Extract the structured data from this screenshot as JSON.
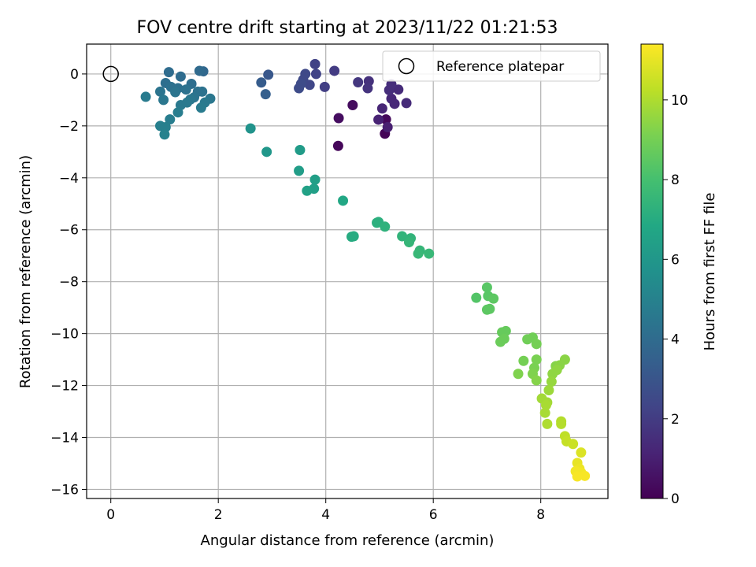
{
  "chart_data": {
    "type": "scatter",
    "title": "FOV centre drift starting at 2023/11/22 01:21:53",
    "xlabel": "Angular distance from reference (arcmin)",
    "ylabel": "Rotation from reference (arcmin)",
    "xlim": [
      -0.45,
      9.25
    ],
    "ylim": [
      -16.35,
      1.15
    ],
    "xticks": [
      0,
      2,
      4,
      6,
      8
    ],
    "xtick_labels": [
      "0",
      "2",
      "4",
      "6",
      "8"
    ],
    "yticks": [
      0,
      -2,
      -4,
      -6,
      -8,
      -10,
      -12,
      -14,
      -16
    ],
    "ytick_labels": [
      "0",
      "−2",
      "−4",
      "−6",
      "−8",
      "−10",
      "−12",
      "−14",
      "−16"
    ],
    "grid": true,
    "colormap": "viridis",
    "colorbar": {
      "label": "Hours from first FF file",
      "range": [
        0,
        11.4
      ],
      "ticks": [
        0,
        2,
        4,
        6,
        8,
        10
      ],
      "tick_labels": [
        "0",
        "2",
        "4",
        "6",
        "8",
        "10"
      ]
    },
    "legend": {
      "position": "top-right",
      "entries": [
        {
          "label": "Reference platepar",
          "marker": "open-circle"
        }
      ]
    },
    "reference_point": {
      "x": 0,
      "y": 0
    },
    "points": [
      [
        5.1,
        -2.3,
        0.1
      ],
      [
        4.23,
        -2.77,
        0.2
      ],
      [
        5.12,
        -1.75,
        0.25
      ],
      [
        4.5,
        -1.2,
        0.35
      ],
      [
        4.24,
        -1.7,
        0.4
      ],
      [
        5.15,
        -2.05,
        1.0
      ],
      [
        4.98,
        -1.76,
        1.1
      ],
      [
        5.05,
        -1.33,
        1.2
      ],
      [
        5.22,
        -0.95,
        1.3
      ],
      [
        5.28,
        -1.15,
        1.3
      ],
      [
        5.5,
        -1.12,
        1.4
      ],
      [
        5.35,
        -0.6,
        1.4
      ],
      [
        5.18,
        -0.62,
        1.5
      ],
      [
        5.22,
        -0.4,
        1.5
      ],
      [
        4.8,
        -0.28,
        1.6
      ],
      [
        4.78,
        -0.55,
        1.7
      ],
      [
        4.6,
        -0.32,
        1.8
      ],
      [
        4.16,
        0.12,
        2.0
      ],
      [
        3.98,
        -0.5,
        2.1
      ],
      [
        3.8,
        0.38,
        2.2
      ],
      [
        3.82,
        0.0,
        2.3
      ],
      [
        3.7,
        -0.42,
        2.4
      ],
      [
        3.62,
        0.0,
        2.5
      ],
      [
        3.58,
        -0.22,
        2.5
      ],
      [
        3.54,
        -0.38,
        2.6
      ],
      [
        3.5,
        -0.55,
        2.6
      ],
      [
        2.93,
        -0.03,
        3.1
      ],
      [
        2.8,
        -0.33,
        3.3
      ],
      [
        2.88,
        -0.78,
        3.4
      ],
      [
        1.72,
        0.1,
        3.8
      ],
      [
        1.65,
        0.12,
        3.9
      ],
      [
        1.08,
        0.07,
        4.0
      ],
      [
        1.3,
        -0.1,
        4.0
      ],
      [
        1.5,
        -0.38,
        4.1
      ],
      [
        1.02,
        -0.35,
        4.1
      ],
      [
        1.12,
        -0.5,
        4.2
      ],
      [
        1.25,
        -0.55,
        4.2
      ],
      [
        1.4,
        -0.6,
        4.3
      ],
      [
        1.7,
        -0.68,
        4.3
      ],
      [
        1.62,
        -0.68,
        4.3
      ],
      [
        0.92,
        -0.68,
        4.4
      ],
      [
        1.2,
        -0.7,
        4.4
      ],
      [
        1.55,
        -0.9,
        4.4
      ],
      [
        0.98,
        -1.0,
        4.5
      ],
      [
        1.48,
        -0.98,
        4.5
      ],
      [
        1.85,
        -0.95,
        4.5
      ],
      [
        1.75,
        -1.1,
        4.6
      ],
      [
        1.3,
        -1.2,
        4.6
      ],
      [
        1.42,
        -1.1,
        4.6
      ],
      [
        1.68,
        -1.3,
        4.7
      ],
      [
        0.65,
        -0.88,
        4.7
      ],
      [
        1.25,
        -1.48,
        4.8
      ],
      [
        1.1,
        -1.75,
        4.8
      ],
      [
        0.92,
        -2.0,
        4.9
      ],
      [
        1.02,
        -2.05,
        4.9
      ],
      [
        1.0,
        -2.33,
        5.0
      ],
      [
        2.6,
        -2.1,
        5.8
      ],
      [
        2.9,
        -3.0,
        6.0
      ],
      [
        3.52,
        -2.93,
        6.2
      ],
      [
        3.5,
        -3.73,
        6.3
      ],
      [
        3.8,
        -4.07,
        6.4
      ],
      [
        3.78,
        -4.42,
        6.4
      ],
      [
        3.65,
        -4.5,
        6.5
      ],
      [
        4.32,
        -4.88,
        6.8
      ],
      [
        4.48,
        -6.27,
        7.0
      ],
      [
        4.52,
        -6.25,
        7.0
      ],
      [
        4.95,
        -5.73,
        7.2
      ],
      [
        4.98,
        -5.7,
        7.2
      ],
      [
        5.1,
        -5.88,
        7.3
      ],
      [
        5.42,
        -6.25,
        7.4
      ],
      [
        5.58,
        -6.33,
        7.4
      ],
      [
        5.55,
        -6.48,
        7.5
      ],
      [
        5.75,
        -6.8,
        7.5
      ],
      [
        5.72,
        -6.92,
        7.6
      ],
      [
        5.92,
        -6.92,
        7.6
      ],
      [
        6.8,
        -8.62,
        8.3
      ],
      [
        7.0,
        -8.22,
        8.4
      ],
      [
        7.02,
        -8.55,
        8.4
      ],
      [
        7.12,
        -8.65,
        8.5
      ],
      [
        7.05,
        -9.05,
        8.5
      ],
      [
        7.0,
        -9.08,
        8.5
      ],
      [
        7.28,
        -9.95,
        8.7
      ],
      [
        7.35,
        -9.9,
        8.7
      ],
      [
        7.32,
        -10.2,
        8.8
      ],
      [
        7.25,
        -10.32,
        8.8
      ],
      [
        7.75,
        -10.22,
        8.9
      ],
      [
        7.85,
        -10.15,
        8.9
      ],
      [
        7.92,
        -10.4,
        9.0
      ],
      [
        7.68,
        -11.05,
        9.0
      ],
      [
        7.92,
        -11.0,
        9.1
      ],
      [
        7.88,
        -11.32,
        9.1
      ],
      [
        7.85,
        -11.55,
        9.2
      ],
      [
        7.58,
        -11.55,
        9.2
      ],
      [
        7.92,
        -11.8,
        9.3
      ],
      [
        8.28,
        -11.25,
        9.3
      ],
      [
        8.35,
        -11.22,
        9.4
      ],
      [
        8.45,
        -11.0,
        9.4
      ],
      [
        8.3,
        -11.4,
        9.5
      ],
      [
        8.22,
        -11.55,
        9.5
      ],
      [
        8.2,
        -11.85,
        9.6
      ],
      [
        8.15,
        -12.18,
        9.7
      ],
      [
        8.02,
        -12.5,
        9.8
      ],
      [
        8.12,
        -12.65,
        9.8
      ],
      [
        8.1,
        -12.75,
        9.9
      ],
      [
        8.08,
        -13.05,
        9.9
      ],
      [
        8.12,
        -13.48,
        10.0
      ],
      [
        8.38,
        -13.38,
        10.1
      ],
      [
        8.38,
        -13.48,
        10.1
      ],
      [
        8.45,
        -13.95,
        10.3
      ],
      [
        8.48,
        -14.15,
        10.4
      ],
      [
        8.6,
        -14.25,
        10.5
      ],
      [
        8.75,
        -14.58,
        10.8
      ],
      [
        8.68,
        -14.98,
        11.0
      ],
      [
        8.72,
        -15.2,
        11.1
      ],
      [
        8.65,
        -15.3,
        11.2
      ],
      [
        8.75,
        -15.35,
        11.2
      ],
      [
        8.82,
        -15.48,
        11.3
      ],
      [
        8.68,
        -15.5,
        11.3
      ]
    ]
  }
}
